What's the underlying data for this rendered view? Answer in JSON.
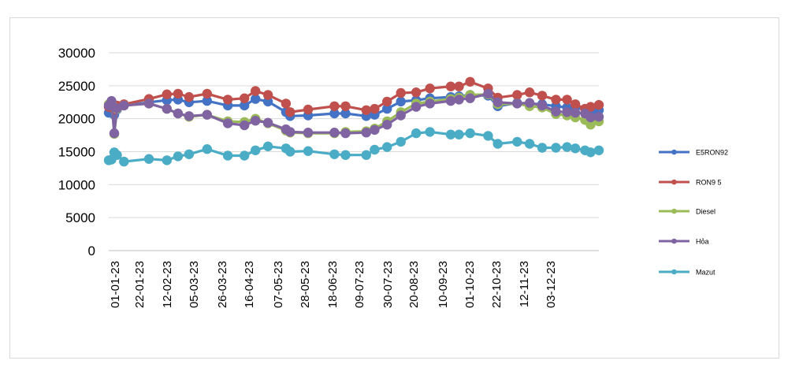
{
  "chart_data": {
    "type": "line",
    "title": "",
    "xlabel": "",
    "ylabel": "",
    "ylim": [
      0,
      30000
    ],
    "yticks": [
      0,
      5000,
      10000,
      15000,
      20000,
      25000,
      30000
    ],
    "grid": "horizontal",
    "legend_position": "right",
    "x_tick_labels": [
      "01-01-23",
      "22-01-23",
      "12-02-23",
      "05-03-23",
      "26-03-23",
      "16-04-23",
      "07-05-23",
      "28-05-23",
      "18-06-23",
      "09-07-23",
      "30-07-23",
      "20-08-23",
      "10-09-23",
      "01-10-23",
      "22-10-23",
      "12-11-23",
      "03-12-23"
    ],
    "x_start": "2023-01-01",
    "x_end": "2023-12-21",
    "x": [
      "2023-01-01",
      "2023-01-03",
      "2023-01-05",
      "2023-01-07",
      "2023-01-12",
      "2023-01-30",
      "2023-02-12",
      "2023-02-20",
      "2023-02-28",
      "2023-03-13",
      "2023-03-28",
      "2023-04-09",
      "2023-04-17",
      "2023-04-26",
      "2023-05-09",
      "2023-05-12",
      "2023-05-25",
      "2023-06-13",
      "2023-06-21",
      "2023-07-06",
      "2023-07-12",
      "2023-07-21",
      "2023-07-31",
      "2023-08-11",
      "2023-08-21",
      "2023-09-05",
      "2023-09-11",
      "2023-09-19",
      "2023-10-02",
      "2023-10-09",
      "2023-10-23",
      "2023-11-01",
      "2023-11-10",
      "2023-11-20",
      "2023-11-28",
      "2023-12-04",
      "2023-12-11",
      "2023-12-15",
      "2023-12-21"
    ],
    "series": [
      {
        "name": "E5RON92",
        "color": "#4472c4",
        "values": [
          20900,
          22400,
          20600,
          21400,
          22000,
          22500,
          22800,
          22900,
          22500,
          22700,
          22000,
          22000,
          23000,
          22600,
          21000,
          20400,
          20500,
          20800,
          20800,
          20400,
          20600,
          21500,
          22600,
          22800,
          23100,
          23300,
          23400,
          23600,
          23500,
          21900,
          22400,
          22300,
          22200,
          21900,
          21700,
          21700,
          21500,
          20900,
          21300
        ]
      },
      {
        "name": "RON9 5",
        "color": "#c0504d",
        "values": [
          21800,
          22500,
          21400,
          22000,
          22200,
          23000,
          23700,
          23800,
          23300,
          23800,
          22900,
          23100,
          24200,
          23600,
          22300,
          21000,
          21400,
          21900,
          21900,
          21300,
          21500,
          22600,
          23900,
          24000,
          24600,
          24900,
          24900,
          25600,
          24600,
          23200,
          23600,
          24000,
          23500,
          22900,
          22900,
          22200,
          21500,
          21800,
          22100
        ]
      },
      {
        "name": "Diesel",
        "color": "#9bbb59",
        "values": [
          22200,
          22500,
          17700,
          21500,
          22000,
          22300,
          21500,
          20800,
          20300,
          20600,
          19600,
          19500,
          20000,
          19300,
          18200,
          17900,
          17800,
          17800,
          18000,
          18100,
          18500,
          19600,
          21000,
          22300,
          22600,
          23000,
          23200,
          23600,
          23700,
          22200,
          22300,
          21900,
          21700,
          20700,
          20500,
          20200,
          19800,
          19100,
          19600
        ]
      },
      {
        "name": "Hỏa",
        "color": "#8064a2",
        "values": [
          22000,
          22700,
          17800,
          21600,
          22000,
          22300,
          21500,
          20800,
          20400,
          20600,
          19300,
          19000,
          19700,
          19400,
          18400,
          18000,
          17900,
          17900,
          17800,
          17900,
          18300,
          19100,
          20500,
          21800,
          22300,
          22700,
          22900,
          23100,
          23800,
          22500,
          22300,
          22400,
          22000,
          21100,
          21000,
          20900,
          20800,
          20200,
          20300
        ]
      },
      {
        "name": "Mazut",
        "color": "#4bacc6",
        "values": [
          13700,
          13800,
          14900,
          14500,
          13500,
          13900,
          13700,
          14300,
          14600,
          15400,
          14400,
          14400,
          15200,
          15800,
          15500,
          15000,
          15100,
          14600,
          14500,
          14500,
          15300,
          15700,
          16500,
          17800,
          18000,
          17600,
          17600,
          17800,
          17400,
          16200,
          16500,
          16200,
          15600,
          15600,
          15700,
          15500,
          15200,
          14900,
          15200
        ]
      }
    ]
  }
}
